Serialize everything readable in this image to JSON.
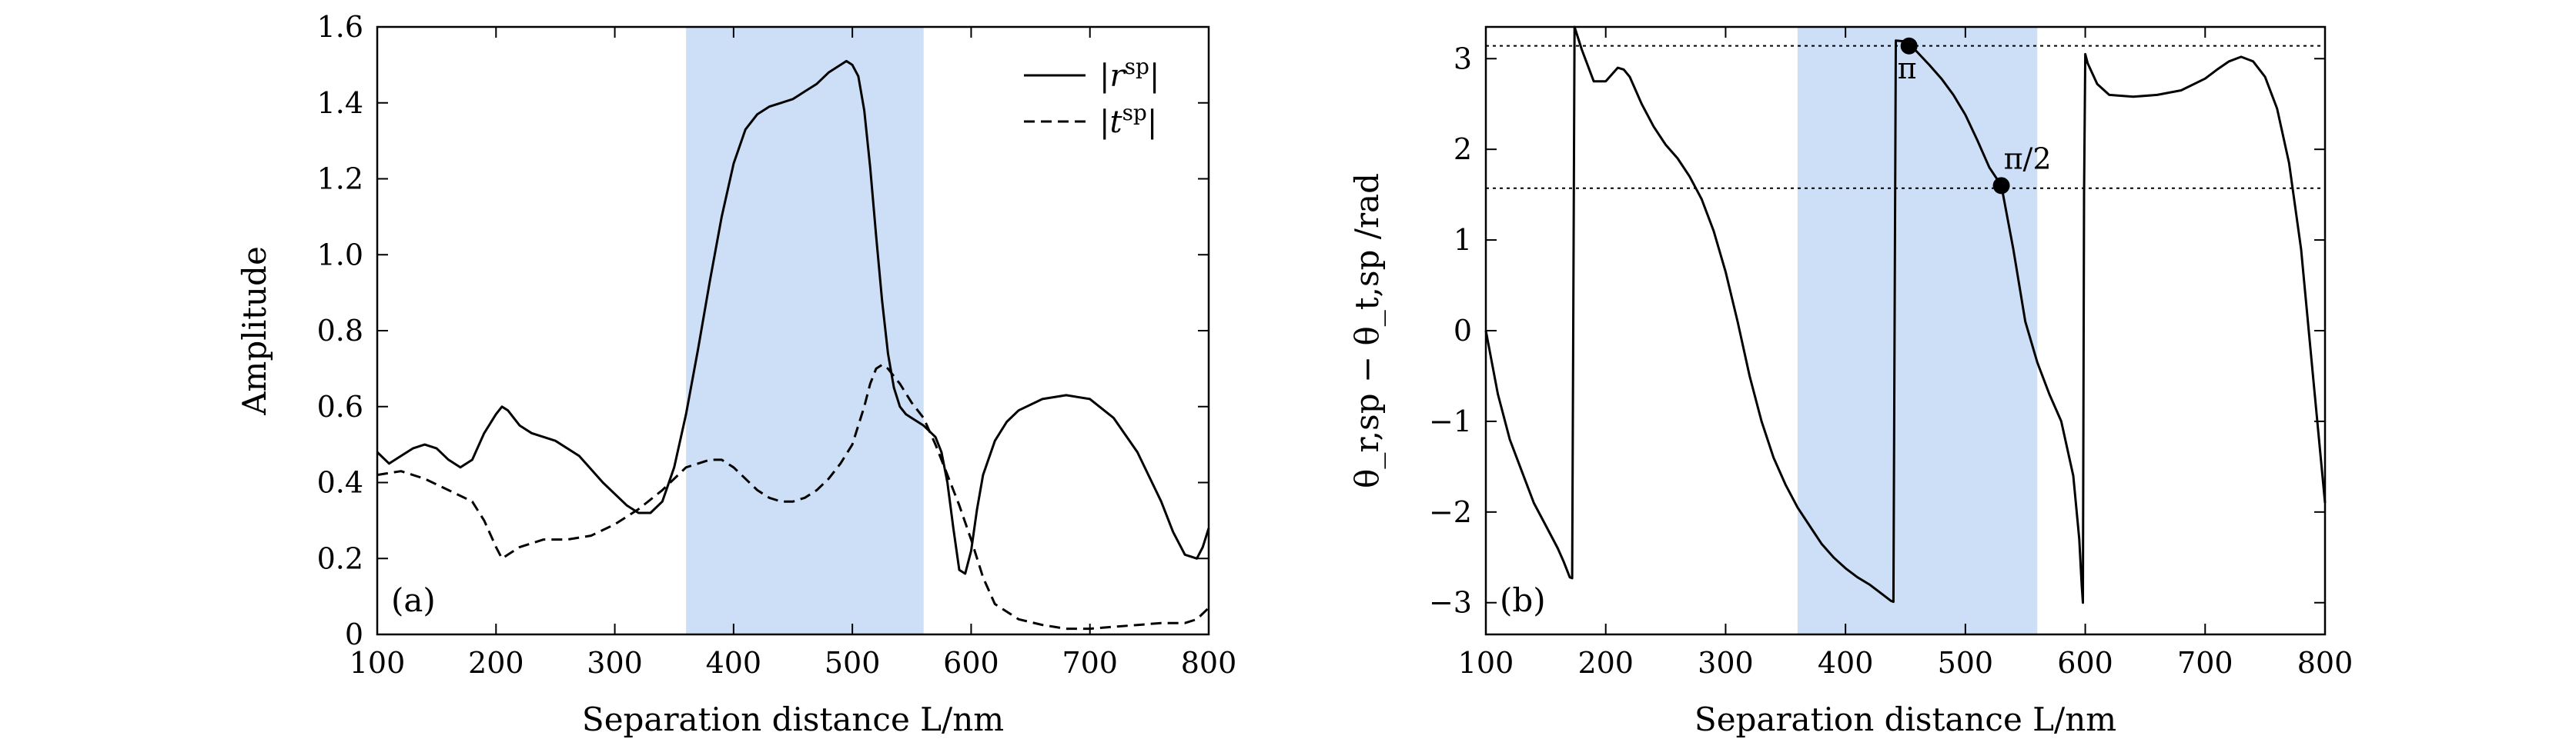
{
  "chart_data": [
    {
      "type": "line",
      "panel_label": "(a)",
      "xlabel": "Separation distance L/nm",
      "ylabel": "Amplitude",
      "xlim": [
        100,
        800
      ],
      "ylim": [
        0,
        1.6
      ],
      "xticks": [
        100,
        200,
        300,
        400,
        500,
        600,
        700,
        800
      ],
      "yticks": [
        0,
        0.2,
        0.4,
        0.6,
        0.8,
        1.0,
        1.2,
        1.4,
        1.6
      ],
      "xtick_labels": [
        "100",
        "200",
        "300",
        "400",
        "500",
        "600",
        "700",
        "800"
      ],
      "ytick_labels": [
        "0",
        "0.2",
        "0.4",
        "0.6",
        "0.8",
        "1.0",
        "1.2",
        "1.4",
        "1.6"
      ],
      "shaded_region": {
        "x": [
          360,
          560
        ],
        "color": "#cddff7"
      },
      "legend": {
        "placement": "top-right"
      },
      "series": [
        {
          "name": "|r^sp|",
          "style": "solid",
          "x": [
            100,
            110,
            120,
            130,
            140,
            150,
            160,
            170,
            180,
            190,
            200,
            205,
            210,
            220,
            230,
            250,
            270,
            290,
            310,
            320,
            330,
            340,
            350,
            360,
            370,
            380,
            390,
            400,
            410,
            420,
            430,
            440,
            450,
            460,
            470,
            480,
            490,
            495,
            500,
            505,
            510,
            515,
            520,
            525,
            530,
            535,
            540,
            545,
            550,
            560,
            570,
            575,
            580,
            585,
            590,
            595,
            600,
            605,
            610,
            620,
            630,
            640,
            660,
            680,
            700,
            720,
            740,
            760,
            770,
            780,
            790,
            795,
            800
          ],
          "y": [
            0.48,
            0.45,
            0.47,
            0.49,
            0.5,
            0.49,
            0.46,
            0.44,
            0.46,
            0.53,
            0.58,
            0.6,
            0.59,
            0.55,
            0.53,
            0.51,
            0.47,
            0.4,
            0.34,
            0.32,
            0.32,
            0.35,
            0.44,
            0.58,
            0.75,
            0.93,
            1.1,
            1.24,
            1.33,
            1.37,
            1.39,
            1.4,
            1.41,
            1.43,
            1.45,
            1.48,
            1.5,
            1.51,
            1.5,
            1.47,
            1.38,
            1.23,
            1.05,
            0.88,
            0.74,
            0.65,
            0.6,
            0.58,
            0.57,
            0.55,
            0.52,
            0.48,
            0.4,
            0.28,
            0.17,
            0.16,
            0.22,
            0.33,
            0.42,
            0.51,
            0.56,
            0.59,
            0.62,
            0.63,
            0.62,
            0.57,
            0.48,
            0.35,
            0.27,
            0.21,
            0.2,
            0.23,
            0.28
          ]
        },
        {
          "name": "|t^sp|",
          "style": "dashed",
          "x": [
            100,
            120,
            140,
            160,
            180,
            190,
            200,
            205,
            210,
            220,
            240,
            260,
            280,
            300,
            320,
            340,
            360,
            380,
            390,
            400,
            410,
            420,
            430,
            440,
            450,
            460,
            470,
            480,
            490,
            500,
            510,
            515,
            520,
            525,
            530,
            540,
            550,
            560,
            570,
            580,
            590,
            600,
            610,
            620,
            640,
            660,
            680,
            700,
            720,
            740,
            760,
            780,
            790,
            800
          ],
          "y": [
            0.42,
            0.43,
            0.41,
            0.38,
            0.35,
            0.3,
            0.23,
            0.2,
            0.21,
            0.23,
            0.25,
            0.25,
            0.26,
            0.29,
            0.33,
            0.38,
            0.44,
            0.46,
            0.46,
            0.44,
            0.41,
            0.38,
            0.36,
            0.35,
            0.35,
            0.36,
            0.38,
            0.41,
            0.45,
            0.5,
            0.6,
            0.66,
            0.7,
            0.71,
            0.7,
            0.66,
            0.61,
            0.57,
            0.5,
            0.42,
            0.34,
            0.25,
            0.15,
            0.08,
            0.04,
            0.025,
            0.015,
            0.015,
            0.02,
            0.025,
            0.03,
            0.03,
            0.04,
            0.07
          ]
        }
      ]
    },
    {
      "type": "line",
      "panel_label": "(b)",
      "xlabel": "Separation distance L/nm",
      "ylabel": "θ_r,sp − θ_t,sp /rad",
      "xlim": [
        100,
        800
      ],
      "ylim": [
        -3.35,
        3.35
      ],
      "xticks": [
        100,
        200,
        300,
        400,
        500,
        600,
        700,
        800
      ],
      "yticks": [
        -3,
        -2,
        -1,
        0,
        1,
        2,
        3
      ],
      "xtick_labels": [
        "100",
        "200",
        "300",
        "400",
        "500",
        "600",
        "700",
        "800"
      ],
      "ytick_labels": [
        "−3",
        "−2",
        "−1",
        "0",
        "1",
        "2",
        "3"
      ],
      "shaded_region": {
        "x": [
          360,
          560
        ],
        "color": "#cddff7"
      },
      "reference_lines": [
        3.1416,
        1.5708
      ],
      "markers": [
        {
          "x": 453,
          "y": 3.14,
          "label": "π"
        },
        {
          "x": 530,
          "y": 1.6,
          "label": "π/2"
        }
      ],
      "series": [
        {
          "name": "",
          "style": "solid",
          "x": [
            100,
            110,
            120,
            130,
            140,
            150,
            160,
            165,
            170,
            172,
            174,
            180,
            190,
            200,
            210,
            215,
            220,
            230,
            240,
            250,
            260,
            270,
            280,
            290,
            300,
            310,
            320,
            330,
            340,
            350,
            360,
            370,
            380,
            390,
            400,
            410,
            420,
            430,
            438,
            440,
            442,
            450,
            455,
            460,
            470,
            480,
            490,
            500,
            510,
            520,
            530,
            540,
            550,
            560,
            570,
            580,
            590,
            595,
            597,
            598,
            599,
            600,
            602,
            610,
            620,
            640,
            660,
            680,
            700,
            710,
            720,
            730,
            740,
            750,
            760,
            770,
            780,
            790,
            800
          ],
          "y": [
            0,
            -0.7,
            -1.2,
            -1.55,
            -1.9,
            -2.15,
            -2.4,
            -2.55,
            -2.72,
            -2.73,
            3.35,
            3.1,
            2.75,
            2.75,
            2.9,
            2.88,
            2.8,
            2.5,
            2.25,
            2.05,
            1.9,
            1.7,
            1.45,
            1.1,
            0.65,
            0.1,
            -0.5,
            -1.0,
            -1.4,
            -1.7,
            -1.95,
            -2.15,
            -2.35,
            -2.5,
            -2.62,
            -2.72,
            -2.8,
            -2.9,
            -2.98,
            -2.99,
            3.2,
            3.19,
            3.14,
            3.07,
            2.93,
            2.78,
            2.6,
            2.38,
            2.1,
            1.8,
            1.6,
            0.9,
            0.1,
            -0.35,
            -0.7,
            -1.0,
            -1.6,
            -2.3,
            -2.8,
            -3.0,
            1.5,
            3.05,
            2.95,
            2.72,
            2.6,
            2.58,
            2.6,
            2.65,
            2.78,
            2.88,
            2.97,
            3.02,
            2.97,
            2.8,
            2.45,
            1.85,
            0.9,
            -0.5,
            -1.9
          ]
        }
      ]
    }
  ]
}
